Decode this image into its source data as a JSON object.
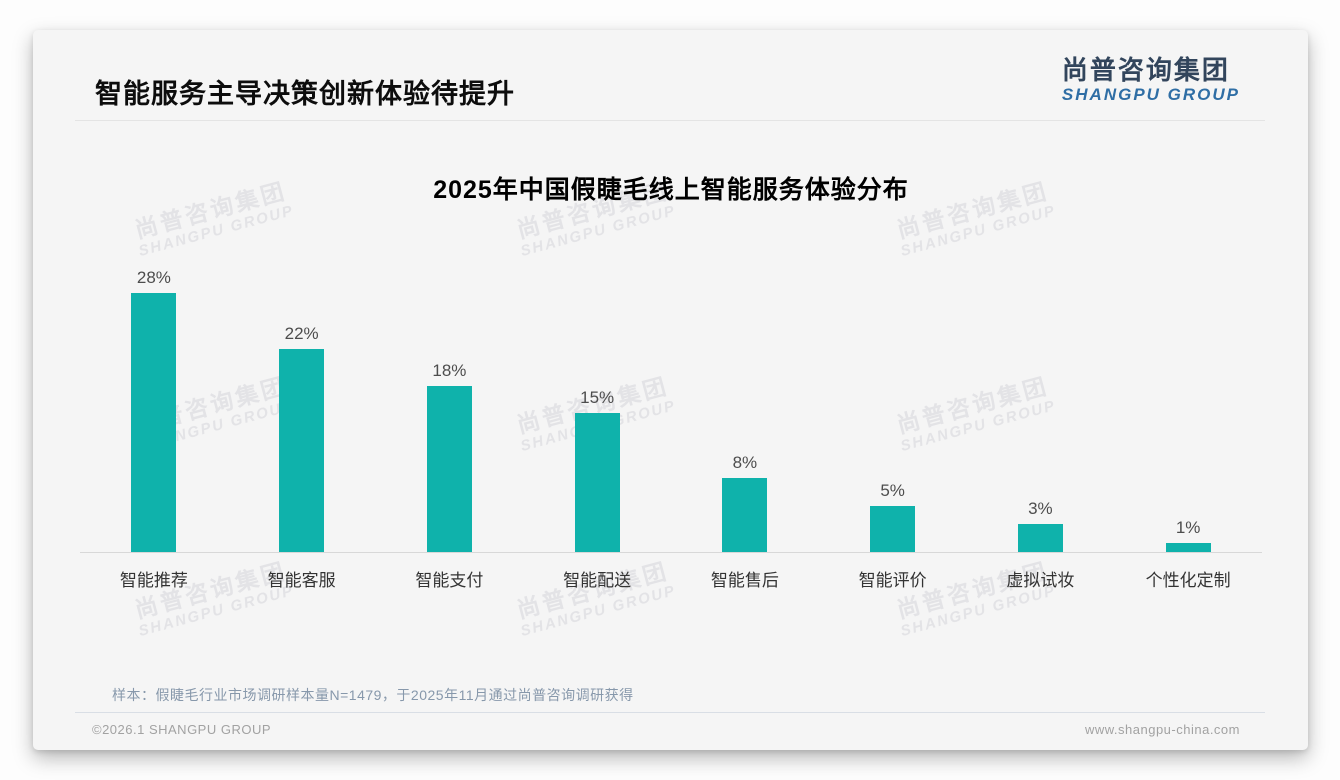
{
  "header": {
    "title": "智能服务主导决策创新体验待提升",
    "logo": {
      "chinese": "尚普咨询集团",
      "english": "SHANGPU GROUP"
    }
  },
  "chart_data": {
    "type": "bar",
    "title": "2025年中国假睫毛线上智能服务体验分布",
    "categories": [
      "智能推荐",
      "智能客服",
      "智能支付",
      "智能配送",
      "智能售后",
      "智能评价",
      "虚拟试妆",
      "个性化定制"
    ],
    "values": [
      28,
      22,
      18,
      15,
      8,
      5,
      3,
      1
    ],
    "value_labels": [
      "28%",
      "22%",
      "18%",
      "15%",
      "8%",
      "5%",
      "3%",
      "1%"
    ],
    "unit": "%",
    "xlabel": "",
    "ylabel": "",
    "ylim": [
      0,
      30
    ],
    "grid": false,
    "legend": "none",
    "bar_color": "#0FB2AB"
  },
  "watermark": {
    "line1": "尚普咨询集团",
    "line2": "SHANGPU GROUP"
  },
  "footnote": {
    "sample": "样本：假睫毛行业市场调研样本量N=1479，于2025年11月通过尚普咨询调研获得"
  },
  "footer": {
    "copyright": "©2026.1 SHANGPU GROUP",
    "website": "www.shangpu-china.com"
  },
  "colors": {
    "accent": "#0FB2AB",
    "logo_chinese": "#32455C",
    "logo_english": "#2F6EA5",
    "note_text": "#8798AB",
    "card_bg": "#F5F5F5"
  }
}
